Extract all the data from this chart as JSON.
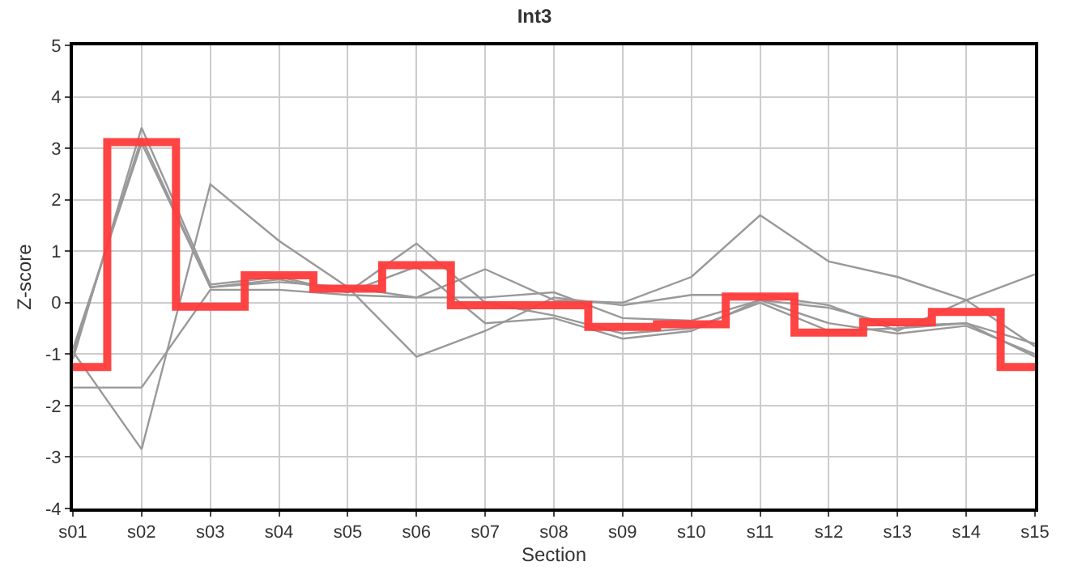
{
  "chart_data": {
    "type": "line",
    "title": "Int3",
    "xlabel": "Section",
    "ylabel": "Z-score",
    "categories": [
      "s01",
      "s02",
      "s03",
      "s04",
      "s05",
      "s06",
      "s07",
      "s08",
      "s09",
      "s10",
      "s11",
      "s12",
      "s13",
      "s14",
      "s15"
    ],
    "series": [
      {
        "color": "#999999",
        "values": [
          -1.0,
          3.2,
          0.3,
          0.4,
          0.3,
          0.1,
          0.65,
          0.05,
          0.0,
          0.5,
          1.7,
          0.8,
          0.5,
          0.05,
          -0.85
        ]
      },
      {
        "color": "#999999",
        "values": [
          -0.95,
          -2.85,
          2.3,
          1.2,
          0.3,
          -1.05,
          -0.55,
          0.1,
          -0.05,
          0.15,
          0.15,
          -0.05,
          -0.55,
          0.05,
          0.55
        ]
      },
      {
        "color": "#999999",
        "values": [
          -1.65,
          -1.65,
          0.25,
          0.25,
          0.15,
          0.1,
          0.1,
          0.2,
          -0.3,
          -0.35,
          0.05,
          -0.1,
          -0.45,
          -0.4,
          -1.05
        ]
      },
      {
        "color": "#999999",
        "values": [
          -1.1,
          3.4,
          0.35,
          0.5,
          0.2,
          1.15,
          0.0,
          -0.25,
          -0.6,
          -0.5,
          0.0,
          -0.55,
          -0.5,
          -0.4,
          -0.8
        ]
      },
      {
        "color": "#999999",
        "values": [
          -0.9,
          3.1,
          0.3,
          0.45,
          0.2,
          0.7,
          -0.4,
          -0.3,
          -0.7,
          -0.55,
          0.05,
          -0.4,
          -0.6,
          -0.45,
          -1.0
        ]
      },
      {
        "type": "step",
        "color": "#ff3b3b",
        "values": [
          -1.25,
          3.12,
          -0.08,
          0.53,
          0.27,
          0.73,
          -0.05,
          -0.05,
          -0.47,
          -0.42,
          0.12,
          -0.58,
          -0.38,
          -0.18,
          -1.25
        ]
      }
    ],
    "ylim": [
      -4,
      5
    ],
    "yticks": [
      -4,
      -3,
      -2,
      -1,
      0,
      1,
      2,
      3,
      4,
      5
    ],
    "grid": true,
    "marker": "none"
  }
}
